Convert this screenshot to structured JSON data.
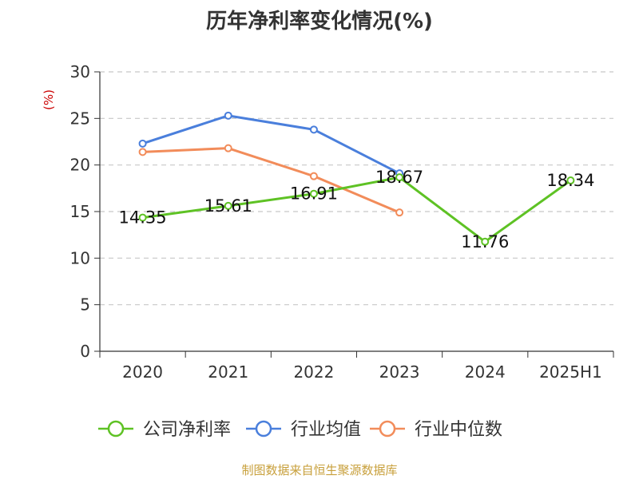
{
  "chart_data": {
    "type": "line",
    "title": "历年净利率变化情况(%)",
    "ylabel": "(%)",
    "xlabel": "",
    "categories": [
      "2020",
      "2021",
      "2022",
      "2023",
      "2024",
      "2025H1"
    ],
    "ylim": [
      0,
      30
    ],
    "yticks": [
      0,
      5,
      10,
      15,
      20,
      25,
      30
    ],
    "grid": true,
    "legend_position": "bottom",
    "series": [
      {
        "name": "公司净利率",
        "color": "#5ec224",
        "values": [
          14.35,
          15.61,
          16.91,
          18.67,
          11.76,
          18.34
        ],
        "labels": [
          "14.35",
          "15.61",
          "16.91",
          "18.67",
          "11.76",
          "18.34"
        ]
      },
      {
        "name": "行业均值",
        "color": "#4a7fdc",
        "values": [
          22.3,
          25.3,
          23.8,
          19.1,
          null,
          null
        ]
      },
      {
        "name": "行业中位数",
        "color": "#f28c5a",
        "values": [
          21.4,
          21.8,
          18.8,
          14.9,
          null,
          null
        ]
      }
    ]
  },
  "source_note": "制图数据来自恒生聚源数据库"
}
